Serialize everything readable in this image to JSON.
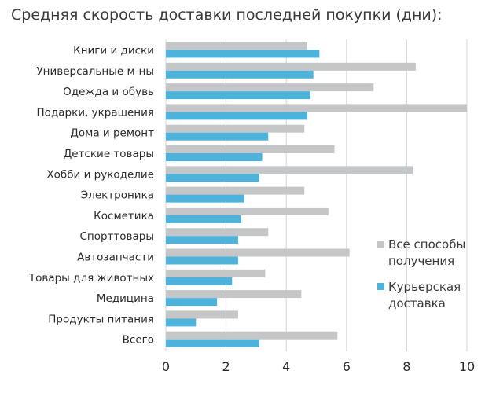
{
  "chart_data": {
    "type": "bar",
    "orientation": "horizontal",
    "title": "Средняя скорость доставки последней покупки (дни):",
    "xlabel": "",
    "ylabel": "",
    "xlim": [
      0,
      10
    ],
    "xticks": [
      0,
      2,
      4,
      6,
      8,
      10
    ],
    "grid": true,
    "legend_position": "right",
    "categories": [
      "Книги и диски",
      "Универсальные м-ны",
      "Одежда и обувь",
      "Подарки, украшения",
      "Дома и ремонт",
      "Детские товары",
      "Хобби и рукоделие",
      "Электроника",
      "Косметика",
      "Спорттовары",
      "Автозапчасти",
      "Товары для животных",
      "Медицина",
      "Продукты питания",
      "Всего"
    ],
    "series": [
      {
        "name": "Все способы получения",
        "legend_lines": [
          "Все способы",
          "получения"
        ],
        "color": "#c5c6c8",
        "values": [
          4.7,
          8.3,
          6.9,
          10.0,
          4.6,
          5.6,
          8.2,
          4.6,
          5.4,
          3.4,
          6.1,
          3.3,
          4.5,
          2.4,
          5.7
        ]
      },
      {
        "name": "Курьерская доставка",
        "legend_lines": [
          "Курьерская",
          "доставка"
        ],
        "color": "#4db3db",
        "values": [
          5.1,
          4.9,
          4.8,
          4.7,
          3.4,
          3.2,
          3.1,
          2.6,
          2.5,
          2.4,
          2.4,
          2.2,
          1.7,
          1.0,
          3.1
        ]
      }
    ]
  }
}
